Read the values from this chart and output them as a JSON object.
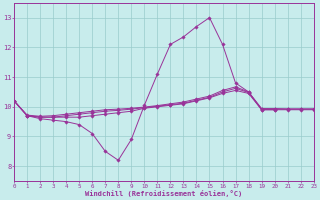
{
  "xlabel": "Windchill (Refroidissement éolien,°C)",
  "bg_color": "#c8ecec",
  "grid_color": "#99cccc",
  "line_color": "#993399",
  "xlim": [
    0,
    23
  ],
  "ylim": [
    7.5,
    13.5
  ],
  "xticks": [
    0,
    1,
    2,
    3,
    4,
    5,
    6,
    7,
    8,
    9,
    10,
    11,
    12,
    13,
    14,
    15,
    16,
    17,
    18,
    19,
    20,
    21,
    22,
    23
  ],
  "yticks": [
    8,
    9,
    10,
    11,
    12,
    13
  ],
  "series": [
    {
      "x": [
        0,
        1,
        2,
        3,
        4,
        5,
        6,
        7,
        8,
        9,
        10,
        11,
        12,
        13,
        14,
        15,
        16,
        17,
        18,
        19,
        20
      ],
      "y": [
        10.2,
        9.7,
        9.6,
        9.55,
        9.5,
        9.4,
        9.1,
        8.5,
        8.2,
        8.9,
        10.05,
        11.1,
        12.1,
        12.35,
        12.7,
        13.0,
        12.1,
        10.8,
        10.5,
        9.9,
        9.9
      ]
    },
    {
      "x": [
        0,
        1,
        2,
        3,
        4,
        5,
        6,
        7,
        8,
        9,
        10,
        11,
        12,
        13,
        14,
        15,
        16,
        17,
        18,
        19,
        20,
        21,
        22,
        23
      ],
      "y": [
        10.2,
        9.7,
        9.65,
        9.65,
        9.65,
        9.65,
        9.7,
        9.75,
        9.8,
        9.85,
        9.95,
        10.0,
        10.05,
        10.1,
        10.2,
        10.3,
        10.45,
        10.55,
        10.45,
        9.9,
        9.9,
        9.9,
        9.9,
        9.9
      ]
    },
    {
      "x": [
        0,
        1,
        2,
        3,
        4,
        5,
        6,
        7,
        8,
        9,
        10,
        11,
        12,
        13,
        14,
        15,
        16,
        17,
        18,
        19,
        20,
        21,
        22,
        23
      ],
      "y": [
        10.2,
        9.7,
        9.65,
        9.65,
        9.7,
        9.75,
        9.8,
        9.85,
        9.88,
        9.92,
        9.97,
        10.02,
        10.07,
        10.12,
        10.22,
        10.32,
        10.5,
        10.62,
        10.48,
        9.92,
        9.92,
        9.92,
        9.92,
        9.92
      ]
    },
    {
      "x": [
        0,
        1,
        2,
        3,
        4,
        5,
        6,
        7,
        8,
        9,
        10,
        11,
        12,
        13,
        14,
        15,
        16,
        17,
        18,
        19,
        20,
        21,
        22,
        23
      ],
      "y": [
        10.2,
        9.72,
        9.68,
        9.7,
        9.75,
        9.8,
        9.85,
        9.9,
        9.92,
        9.95,
        9.99,
        10.04,
        10.1,
        10.16,
        10.26,
        10.36,
        10.55,
        10.67,
        10.5,
        9.94,
        9.94,
        9.93,
        9.93,
        9.93
      ]
    }
  ]
}
